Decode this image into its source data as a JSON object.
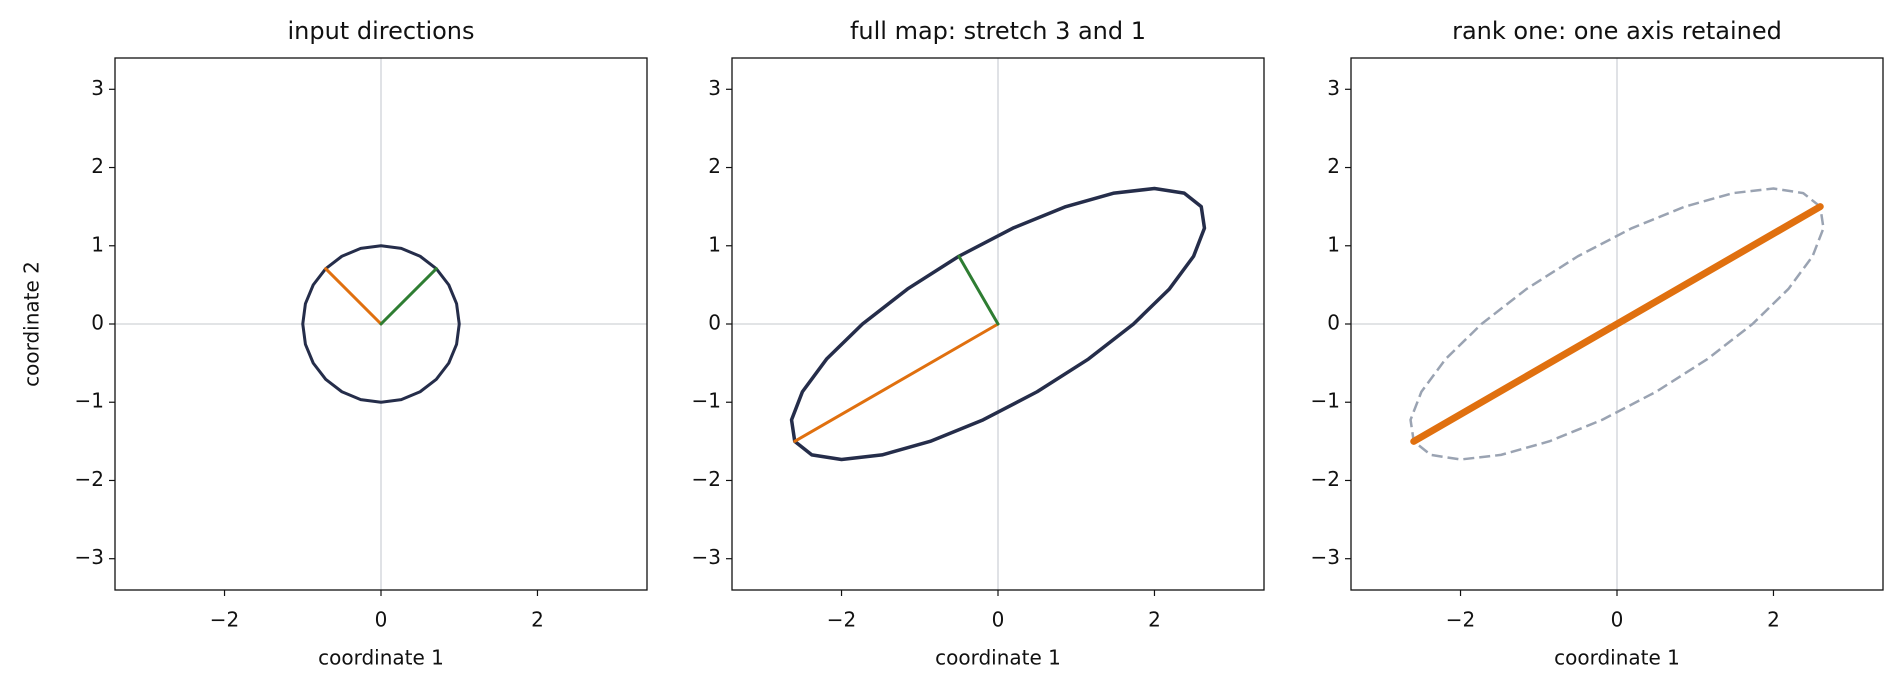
{
  "chart_data": [
    {
      "type": "line",
      "title": "input directions",
      "xlabel": "coordinate 1",
      "ylabel": "coordinate 2",
      "xlim": [
        -3.4,
        3.4
      ],
      "ylim": [
        -3.4,
        3.4
      ],
      "xticks": [
        {
          "value": -2,
          "label": "−2"
        },
        0,
        2
      ],
      "yticks": [
        {
          "value": -3,
          "label": "−3"
        },
        {
          "value": -2,
          "label": "−2"
        },
        {
          "value": -1,
          "label": "−1"
        },
        0,
        1,
        2,
        3
      ],
      "zero_lines": true,
      "series": [
        {
          "color": "#252d4a",
          "width": 3,
          "closed": true,
          "x": [
            1,
            0.966,
            0.866,
            0.707,
            0.5,
            0.259,
            0,
            -0.259,
            -0.5,
            -0.707,
            -0.866,
            -0.966,
            -1,
            -0.966,
            -0.866,
            -0.707,
            -0.5,
            -0.259,
            0,
            0.259,
            0.5,
            0.707,
            0.866,
            0.966
          ],
          "values": [
            0,
            0.259,
            0.5,
            0.707,
            0.866,
            0.966,
            1,
            0.966,
            0.866,
            0.707,
            0.5,
            0.259,
            0,
            -0.259,
            -0.5,
            -0.707,
            -0.866,
            -0.966,
            -1,
            -0.966,
            -0.866,
            -0.707,
            -0.5,
            -0.259
          ]
        },
        {
          "color": "#e0700f",
          "width": 3,
          "x": [
            0,
            -0.707
          ],
          "values": [
            0,
            0.707
          ]
        },
        {
          "color": "#2e7d32",
          "width": 3,
          "x": [
            0,
            0.707
          ],
          "values": [
            0,
            0.707
          ]
        }
      ]
    },
    {
      "type": "line",
      "title": "full map: stretch 3 and 1",
      "xlabel": "coordinate 1",
      "xlim": [
        -3.4,
        3.4
      ],
      "ylim": [
        -3.4,
        3.4
      ],
      "xticks": [
        {
          "value": -2,
          "label": "−2"
        },
        0,
        2
      ],
      "yticks": [
        {
          "value": -3,
          "label": "−3"
        },
        {
          "value": -2,
          "label": "−2"
        },
        {
          "value": -1,
          "label": "−1"
        },
        0,
        1,
        2,
        3
      ],
      "zero_lines": true,
      "series": [
        {
          "color": "#252d4a",
          "width": 3.5,
          "closed": true,
          "x": [
            2.598,
            2.38,
            2.0,
            1.483,
            0.866,
            0.19,
            -0.5,
            -1.156,
            -1.732,
            -2.191,
            -2.5,
            -2.639,
            -2.598,
            -2.38,
            -2.0,
            -1.483,
            -0.866,
            -0.19,
            0.5,
            1.156,
            1.732,
            2.191,
            2.5,
            2.639
          ],
          "values": [
            1.5,
            1.673,
            1.732,
            1.673,
            1.5,
            1.225,
            0.866,
            0.448,
            0,
            -0.448,
            -0.866,
            -1.225,
            -1.5,
            -1.673,
            -1.732,
            -1.673,
            -1.5,
            -1.225,
            -0.866,
            -0.448,
            0,
            0.448,
            0.866,
            1.225
          ]
        },
        {
          "color": "#e0700f",
          "width": 3,
          "x": [
            0,
            -2.598
          ],
          "values": [
            0,
            -1.5
          ]
        },
        {
          "color": "#2e7d32",
          "width": 3,
          "x": [
            0,
            -0.5
          ],
          "values": [
            0,
            0.866
          ]
        }
      ]
    },
    {
      "type": "line",
      "title": "rank one: one axis retained",
      "xlabel": "coordinate 1",
      "xlim": [
        -3.4,
        3.4
      ],
      "ylim": [
        -3.4,
        3.4
      ],
      "xticks": [
        {
          "value": -2,
          "label": "−2"
        },
        0,
        2
      ],
      "yticks": [
        {
          "value": -3,
          "label": "−3"
        },
        {
          "value": -2,
          "label": "−2"
        },
        {
          "value": -1,
          "label": "−1"
        },
        0,
        1,
        2,
        3
      ],
      "zero_lines": true,
      "series": [
        {
          "color": "#9aa3b2",
          "width": 2.5,
          "closed": true,
          "dashed": true,
          "x": [
            2.598,
            2.38,
            2.0,
            1.483,
            0.866,
            0.19,
            -0.5,
            -1.156,
            -1.732,
            -2.191,
            -2.5,
            -2.639,
            -2.598,
            -2.38,
            -2.0,
            -1.483,
            -0.866,
            -0.19,
            0.5,
            1.156,
            1.732,
            2.191,
            2.5,
            2.639
          ],
          "values": [
            1.5,
            1.673,
            1.732,
            1.673,
            1.5,
            1.225,
            0.866,
            0.448,
            0,
            -0.448,
            -0.866,
            -1.225,
            -1.5,
            -1.673,
            -1.732,
            -1.673,
            -1.5,
            -1.225,
            -0.866,
            -0.448,
            0,
            0.448,
            0.866,
            1.225
          ]
        },
        {
          "color": "#e0700f",
          "width": 7,
          "x": [
            -2.598,
            2.598
          ],
          "values": [
            -1.5,
            1.5
          ]
        }
      ]
    }
  ]
}
